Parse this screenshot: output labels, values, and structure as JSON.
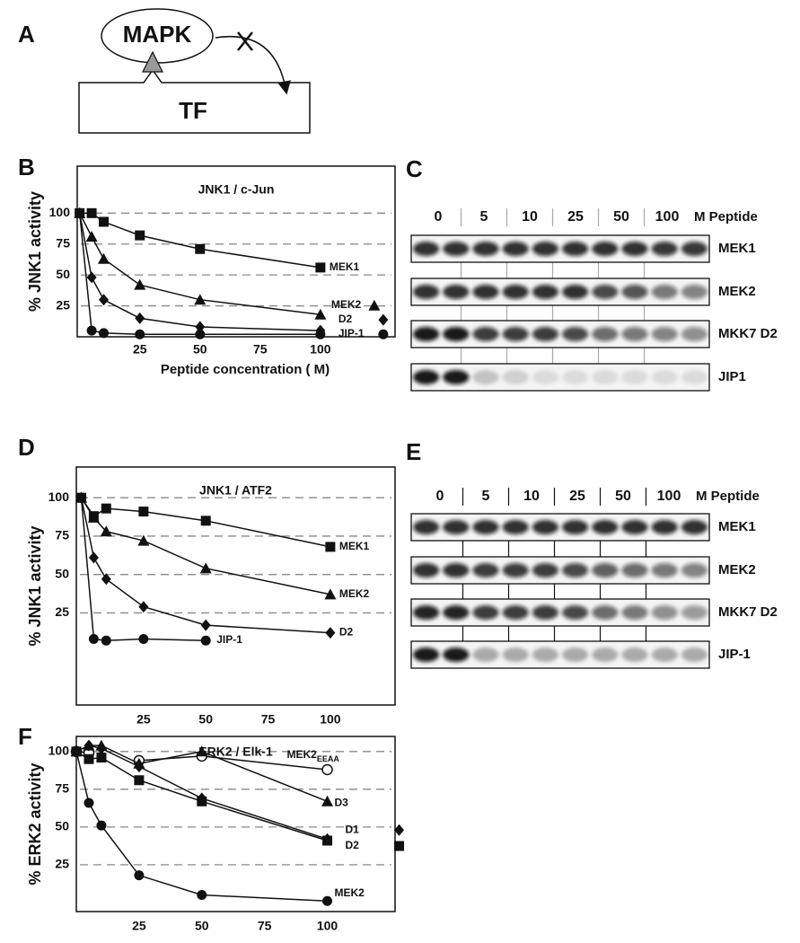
{
  "panel_labels": [
    "A",
    "B",
    "C",
    "D",
    "E",
    "F"
  ],
  "diagram": {
    "kinase": "MAPK",
    "substrate": "TF"
  },
  "chart_data": [
    {
      "type": "line",
      "title": "JNK1 / c-Jun",
      "ylabel": "% JNK1 activity",
      "xlabel": "Peptide concentration (  M)",
      "x": [
        0,
        5,
        10,
        25,
        50,
        100
      ],
      "xlim": [
        -1,
        131
      ],
      "ylim": [
        0,
        138
      ],
      "xticks": [
        25,
        50,
        75,
        100
      ],
      "yticks": [
        25,
        50,
        75,
        100
      ],
      "grid": true,
      "series": [
        {
          "name": "MEK1",
          "color": "#111111",
          "marker": "square",
          "values": [
            100,
            100,
            93,
            82,
            71,
            56
          ]
        },
        {
          "name": "MEK2",
          "color": "#111111",
          "marker": "triangle",
          "values": [
            100,
            81,
            63,
            42,
            30,
            18
          ]
        },
        {
          "name": "D2",
          "color": "#111111",
          "marker": "diamond",
          "values": [
            100,
            48,
            30,
            15,
            8,
            5
          ]
        },
        {
          "name": "JIP-1",
          "color": "#111111",
          "marker": "circle",
          "values": [
            100,
            5,
            3,
            2,
            2,
            2
          ]
        }
      ]
    },
    {
      "type": "line",
      "title": "JNK1 / ATF2",
      "ylabel": "% JNK1 activity",
      "x": [
        0,
        5,
        10,
        25,
        50,
        100
      ],
      "xlim": [
        -2,
        126
      ],
      "ylim": [
        -35,
        120
      ],
      "xticks": [
        25,
        50,
        75,
        100
      ],
      "yticks": [
        25,
        50,
        75,
        100
      ],
      "grid": true,
      "series": [
        {
          "name": "MEK1",
          "color": "#111111",
          "marker": "square",
          "values": [
            100,
            88,
            93,
            91,
            85,
            68
          ]
        },
        {
          "name": "MEK2",
          "color": "#111111",
          "marker": "triangle",
          "values": [
            100,
            87,
            78,
            72,
            54,
            37
          ]
        },
        {
          "name": "D2",
          "color": "#111111",
          "marker": "diamond",
          "values": [
            100,
            61,
            47,
            29,
            17,
            12
          ]
        },
        {
          "name": "JIP-1",
          "color": "#111111",
          "marker": "circle",
          "values": [
            100,
            8,
            7,
            8,
            7,
            null
          ]
        }
      ]
    },
    {
      "type": "line",
      "title": "ERK2 / Elk-1",
      "ylabel": "% ERK2 activity",
      "x": [
        0,
        5,
        10,
        25,
        50,
        100
      ],
      "xlim": [
        0,
        127
      ],
      "ylim": [
        -6,
        110
      ],
      "xticks": [
        25,
        50,
        75,
        100
      ],
      "yticks": [
        25,
        50,
        75,
        100
      ],
      "grid": true,
      "series": [
        {
          "name": "MEK2",
          "name_subscript": "EEAA",
          "color": "#111111",
          "marker": "open-circle",
          "values": [
            100,
            99,
            null,
            94,
            97,
            88
          ]
        },
        {
          "name": "D3",
          "color": "#111111",
          "marker": "triangle",
          "values": [
            100,
            104,
            104,
            92,
            100,
            67
          ]
        },
        {
          "name": "D1",
          "color": "#111111",
          "marker": "diamond",
          "values": [
            100,
            104,
            102,
            90,
            69,
            42
          ]
        },
        {
          "name": "D2",
          "color": "#111111",
          "marker": "square",
          "values": [
            100,
            95,
            96,
            81,
            67,
            41
          ]
        },
        {
          "name": "MEK2",
          "color": "#111111",
          "marker": "circle",
          "values": [
            100,
            66,
            51,
            18,
            5,
            1
          ]
        }
      ]
    }
  ],
  "blots": [
    {
      "lanes": [
        "0",
        "5",
        "10",
        "25",
        "50",
        "100"
      ],
      "unit": "M Peptide",
      "rows": [
        {
          "label": "MEK1",
          "intensity": [
            0.85,
            0.85,
            0.85,
            0.85,
            0.85,
            0.85,
            0.85,
            0.85,
            0.82,
            0.82
          ]
        },
        {
          "label": "MEK2",
          "intensity": [
            0.85,
            0.85,
            0.85,
            0.85,
            0.85,
            0.85,
            0.75,
            0.7,
            0.55,
            0.5
          ]
        },
        {
          "label": "MKK7 D2",
          "intensity": [
            0.95,
            0.95,
            0.8,
            0.8,
            0.8,
            0.75,
            0.6,
            0.55,
            0.5,
            0.45
          ]
        },
        {
          "label": "JIP1",
          "intensity": [
            0.95,
            0.95,
            0.2,
            0.15,
            0.1,
            0.1,
            0.1,
            0.1,
            0.1,
            0.1
          ]
        }
      ]
    },
    {
      "lanes": [
        "0",
        "5",
        "10",
        "25",
        "50",
        "100"
      ],
      "unit": "M Peptide",
      "rows": [
        {
          "label": "MEK1",
          "intensity": [
            0.85,
            0.85,
            0.85,
            0.85,
            0.85,
            0.85,
            0.85,
            0.85,
            0.85,
            0.85
          ]
        },
        {
          "label": "MEK2",
          "intensity": [
            0.85,
            0.85,
            0.8,
            0.8,
            0.8,
            0.75,
            0.65,
            0.6,
            0.55,
            0.5
          ]
        },
        {
          "label": "MKK7 D2",
          "intensity": [
            0.9,
            0.9,
            0.8,
            0.8,
            0.8,
            0.75,
            0.6,
            0.55,
            0.45,
            0.4
          ]
        },
        {
          "label": "JIP-1",
          "intensity": [
            0.95,
            0.95,
            0.3,
            0.3,
            0.3,
            0.3,
            0.3,
            0.3,
            0.3,
            0.3
          ]
        }
      ]
    }
  ]
}
